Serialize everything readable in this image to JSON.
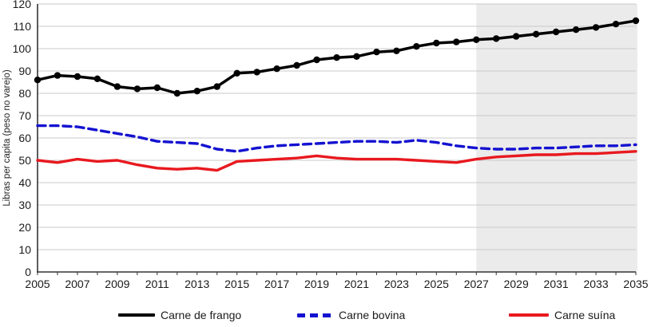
{
  "chart_data": {
    "type": "line",
    "title": "",
    "xlabel": "",
    "ylabel": "Libras per capita (peso no varejo)",
    "ylim": [
      0,
      120
    ],
    "y_tick_step": 10,
    "x_tick_label_step": 2,
    "grid": "horizontal",
    "legend_position": "bottom",
    "axis_color": "#333333",
    "grid_color": "#c8c8c8",
    "tick_label_color": "#1a1a1a",
    "projection_region": {
      "from_year": 2027,
      "to_year": 2035,
      "fill": "#ebebeb"
    },
    "years": [
      2005,
      2006,
      2007,
      2008,
      2009,
      2010,
      2011,
      2012,
      2013,
      2014,
      2015,
      2016,
      2017,
      2018,
      2019,
      2020,
      2021,
      2022,
      2023,
      2024,
      2025,
      2026,
      2027,
      2028,
      2029,
      2030,
      2031,
      2032,
      2033,
      2034,
      2035
    ],
    "x_tick_labels": [
      "2005",
      "2007",
      "2009",
      "2011",
      "2013",
      "2015",
      "2017",
      "2019",
      "2021",
      "2023",
      "2025",
      "2027",
      "2029",
      "2031",
      "2033",
      "2035"
    ],
    "y_tick_labels": [
      "0",
      "10",
      "20",
      "30",
      "40",
      "50",
      "60",
      "70",
      "80",
      "90",
      "100",
      "110",
      "120"
    ],
    "series": [
      {
        "name": "Carne de frango",
        "color": "#000000",
        "line_style": "solid",
        "marker": "circle",
        "values": [
          86,
          88,
          87.5,
          86.5,
          83,
          82,
          82.5,
          80,
          81,
          83,
          89,
          89.5,
          91,
          92.5,
          95,
          96,
          96.5,
          98.5,
          99,
          101,
          102.5,
          103,
          104,
          104.5,
          105.5,
          106.5,
          107.5,
          108.5,
          109.5,
          111,
          112.5
        ]
      },
      {
        "name": "Carne bovina",
        "color": "#1412d0",
        "line_style": "dashed",
        "marker": "none",
        "values": [
          65.5,
          65.5,
          65,
          63.5,
          62,
          60.5,
          58.5,
          58,
          57.5,
          55,
          54,
          55.5,
          56.5,
          57,
          57.5,
          58,
          58.5,
          58.5,
          58,
          59,
          58,
          56.5,
          55.5,
          55,
          55,
          55.5,
          55.5,
          56,
          56.5,
          56.5,
          57
        ]
      },
      {
        "name": "Carne suína",
        "color": "#e8191f",
        "line_style": "solid",
        "marker": "none",
        "values": [
          50,
          49,
          50.5,
          49.5,
          50,
          48,
          46.5,
          46,
          46.5,
          45.5,
          49.5,
          50,
          50.5,
          51,
          52,
          51,
          50.5,
          50.5,
          50.5,
          50,
          49.5,
          49,
          50.5,
          51.5,
          52,
          52.5,
          52.5,
          53,
          53,
          53.5,
          54
        ]
      }
    ]
  }
}
